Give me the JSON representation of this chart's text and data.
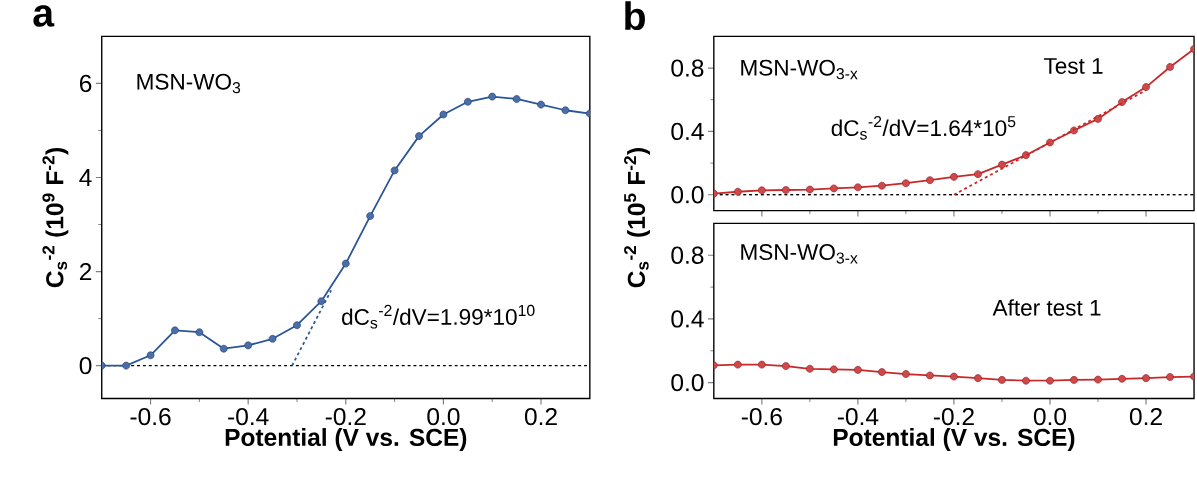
{
  "chart_data": [
    {
      "type": "line",
      "title": "a",
      "xlabel": "Potential (V vs. SCE)",
      "ylabel": "C$_{s}$$^{-2}$ (10$^{9}$ F$^{-2}$)",
      "xlim": [
        -0.7,
        0.3
      ],
      "xticks": [
        -0.6,
        -0.4,
        -0.2,
        {
          "value": 0,
          "label": "0.0"
        },
        0.2
      ],
      "ylim": [
        -0.7,
        7
      ],
      "yticks": [
        0,
        2,
        4,
        6
      ],
      "marker": "circle",
      "series": [
        {
          "color": "#2a5599",
          "x": [
            -0.7,
            -0.65,
            -0.6,
            -0.55,
            -0.5,
            -0.45,
            -0.4,
            -0.35,
            -0.3,
            -0.25,
            -0.2,
            -0.15,
            -0.1,
            -0.05,
            0,
            0.05,
            0.1,
            0.15,
            0.2,
            0.25,
            0.3
          ],
          "values": [
            0,
            0,
            0.22,
            0.75,
            0.71,
            0.36,
            0.43,
            0.57,
            0.86,
            1.37,
            2.17,
            3.18,
            4.15,
            4.88,
            5.34,
            5.61,
            5.72,
            5.67,
            5.55,
            5.43,
            5.36
          ]
        },
        {
          "type": "line",
          "color": "#2a5599",
          "line_style": "dashed",
          "marker": "none",
          "x": [
            -0.31,
            -0.23
          ],
          "values": [
            0,
            1.6
          ]
        }
      ],
      "ref_lines": [
        {
          "axis": "y",
          "value": 0,
          "color": "#000000",
          "line_style": "dashed"
        }
      ],
      "annotations": [
        "MSN-WO$_{3}$",
        "dC$_{s}$$^{-2}$/dV=1.99*10$^{10}$"
      ]
    },
    {
      "type": "line",
      "title": "b",
      "ylabel": "C$_{s}$$^{-2}$ (10$^{5}$ F$^{-2}$)",
      "xlim": [
        -0.7,
        0.3
      ],
      "xticks": [
        {
          "value": -0.6,
          "label": null
        },
        {
          "value": -0.4,
          "label": null
        },
        {
          "value": -0.2,
          "label": null
        },
        {
          "value": 0,
          "label": null
        },
        {
          "value": 0.2,
          "label": null
        }
      ],
      "ylim": [
        -0.1,
        1.0
      ],
      "yticks": [
        {
          "value": 0,
          "label": "0.0"
        },
        0.4,
        0.8
      ],
      "marker": "circle",
      "tick_labels": "y",
      "series": [
        {
          "color": "#c8282a",
          "x": [
            -0.7,
            -0.65,
            -0.6,
            -0.55,
            -0.5,
            -0.45,
            -0.4,
            -0.35,
            -0.3,
            -0.25,
            -0.2,
            -0.15,
            -0.1,
            -0.05,
            0,
            0.05,
            0.1,
            0.15,
            0.2,
            0.25,
            0.3
          ],
          "values": [
            0.007,
            0.019,
            0.028,
            0.03,
            0.033,
            0.04,
            0.047,
            0.057,
            0.073,
            0.092,
            0.113,
            0.13,
            0.19,
            0.25,
            0.33,
            0.406,
            0.479,
            0.585,
            0.68,
            0.807,
            0.92
          ]
        },
        {
          "type": "line",
          "color": "#c8282a",
          "line_style": "dashed",
          "marker": "none",
          "x": [
            -0.2,
            0.2
          ],
          "values": [
            0,
            0.66
          ]
        }
      ],
      "ref_lines": [
        {
          "axis": "y",
          "value": 0,
          "color": "#000000",
          "line_style": "dashed"
        }
      ],
      "annotations": [
        "MSN-WO$_{3-x}$",
        "Test 1",
        "dC$_{s}$$^{-2}$/dV=1.64*10$^{5}$"
      ]
    },
    {
      "type": "line",
      "xlabel": "Potential (V vs. SCE)",
      "xlim": [
        -0.7,
        0.3
      ],
      "xticks": [
        -0.6,
        -0.4,
        -0.2,
        {
          "value": 0,
          "label": "0.0"
        },
        0.2
      ],
      "ylim": [
        -0.1,
        1.0
      ],
      "yticks": [
        {
          "value": 0,
          "label": "0.0"
        },
        0.4,
        0.8
      ],
      "marker": "circle",
      "series": [
        {
          "color": "#c8282a",
          "x": [
            -0.7,
            -0.65,
            -0.6,
            -0.55,
            -0.5,
            -0.45,
            -0.4,
            -0.35,
            -0.3,
            -0.25,
            -0.2,
            -0.15,
            -0.1,
            -0.05,
            0,
            0.05,
            0.1,
            0.15,
            0.2,
            0.25,
            0.3
          ],
          "values": [
            0.109,
            0.113,
            0.113,
            0.104,
            0.087,
            0.083,
            0.08,
            0.066,
            0.054,
            0.045,
            0.038,
            0.028,
            0.017,
            0.012,
            0.012,
            0.017,
            0.019,
            0.024,
            0.028,
            0.035,
            0.038
          ]
        }
      ],
      "annotations": [
        "MSN-WO$_{3-x}$",
        "After test 1"
      ]
    }
  ]
}
